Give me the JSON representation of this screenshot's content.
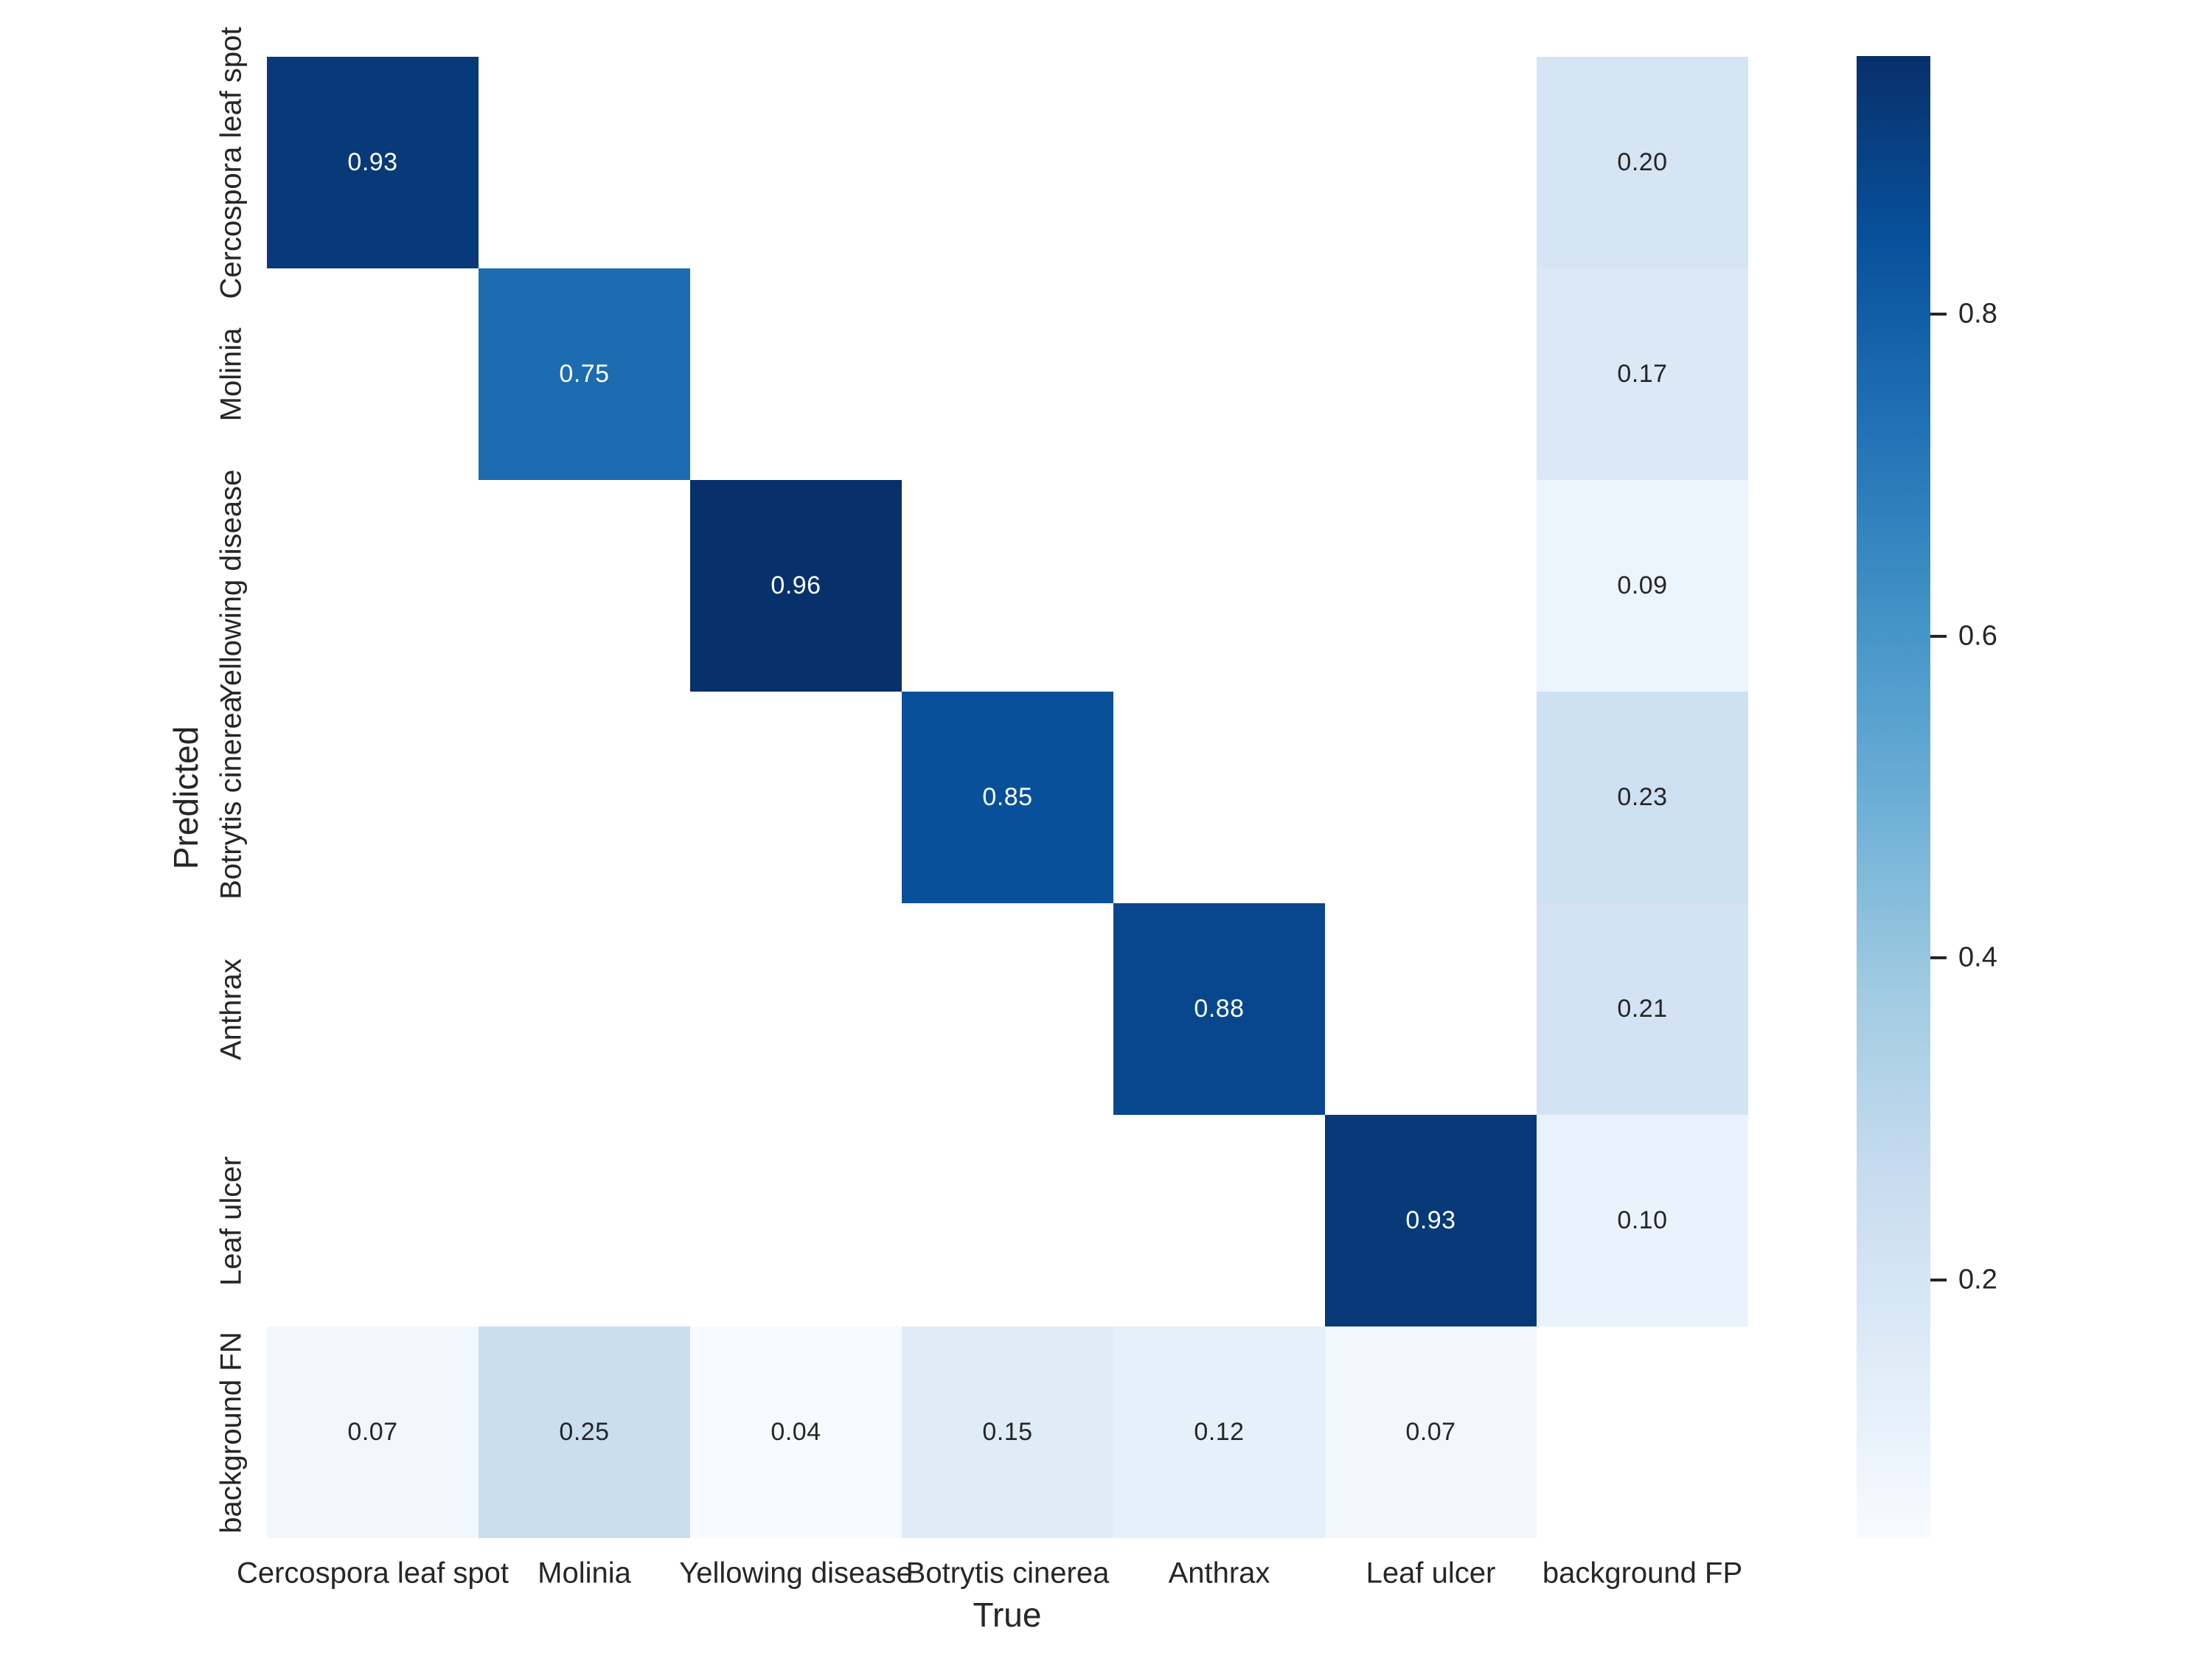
{
  "figure": {
    "background_color": "#ffffff",
    "text_color": "#262626"
  },
  "chart_data": {
    "type": "heatmap",
    "title": "",
    "xlabel": "True",
    "ylabel": "Predicted",
    "x_categories": [
      "Cercospora leaf spot",
      "Molinia",
      "Yellowing disease",
      "Botrytis cinerea",
      "Anthrax",
      "Leaf ulcer",
      "background FP"
    ],
    "y_categories": [
      "Cercospora leaf spot",
      "Molinia",
      "Yellowing disease",
      "Botrytis cinerea",
      "Anthrax",
      "Leaf ulcer",
      "background FN"
    ],
    "matrix": [
      [
        0.93,
        null,
        null,
        null,
        null,
        null,
        0.2
      ],
      [
        null,
        0.75,
        null,
        null,
        null,
        null,
        0.17
      ],
      [
        null,
        null,
        0.96,
        null,
        null,
        null,
        0.09
      ],
      [
        null,
        null,
        null,
        0.85,
        null,
        null,
        0.23
      ],
      [
        null,
        null,
        null,
        null,
        0.88,
        null,
        0.21
      ],
      [
        null,
        null,
        null,
        null,
        null,
        0.93,
        0.1
      ],
      [
        0.07,
        0.25,
        0.04,
        0.15,
        0.12,
        0.07,
        null
      ]
    ],
    "value_format_decimals": 2,
    "colormap": "Blues",
    "vmin": 0.04,
    "vmax": 0.96,
    "colormap_stops": [
      [
        0.0,
        "#f7fbff"
      ],
      [
        0.125,
        "#deebf7"
      ],
      [
        0.25,
        "#c6dbef"
      ],
      [
        0.375,
        "#9ecae1"
      ],
      [
        0.5,
        "#6baed6"
      ],
      [
        0.625,
        "#4292c6"
      ],
      [
        0.75,
        "#2171b5"
      ],
      [
        0.875,
        "#08519c"
      ],
      [
        1.0,
        "#08306b"
      ]
    ],
    "empty_cell_color": "#ffffff",
    "annotation_color_dark": "#262626",
    "annotation_color_light": "#ffffff",
    "legend_position": "right-colorbar",
    "grid": false,
    "colorbar_ticks": [
      0.2,
      0.4,
      0.6,
      0.8
    ],
    "colorbar_tick_labels": [
      "0.2",
      "0.4",
      "0.6",
      "0.8"
    ]
  }
}
